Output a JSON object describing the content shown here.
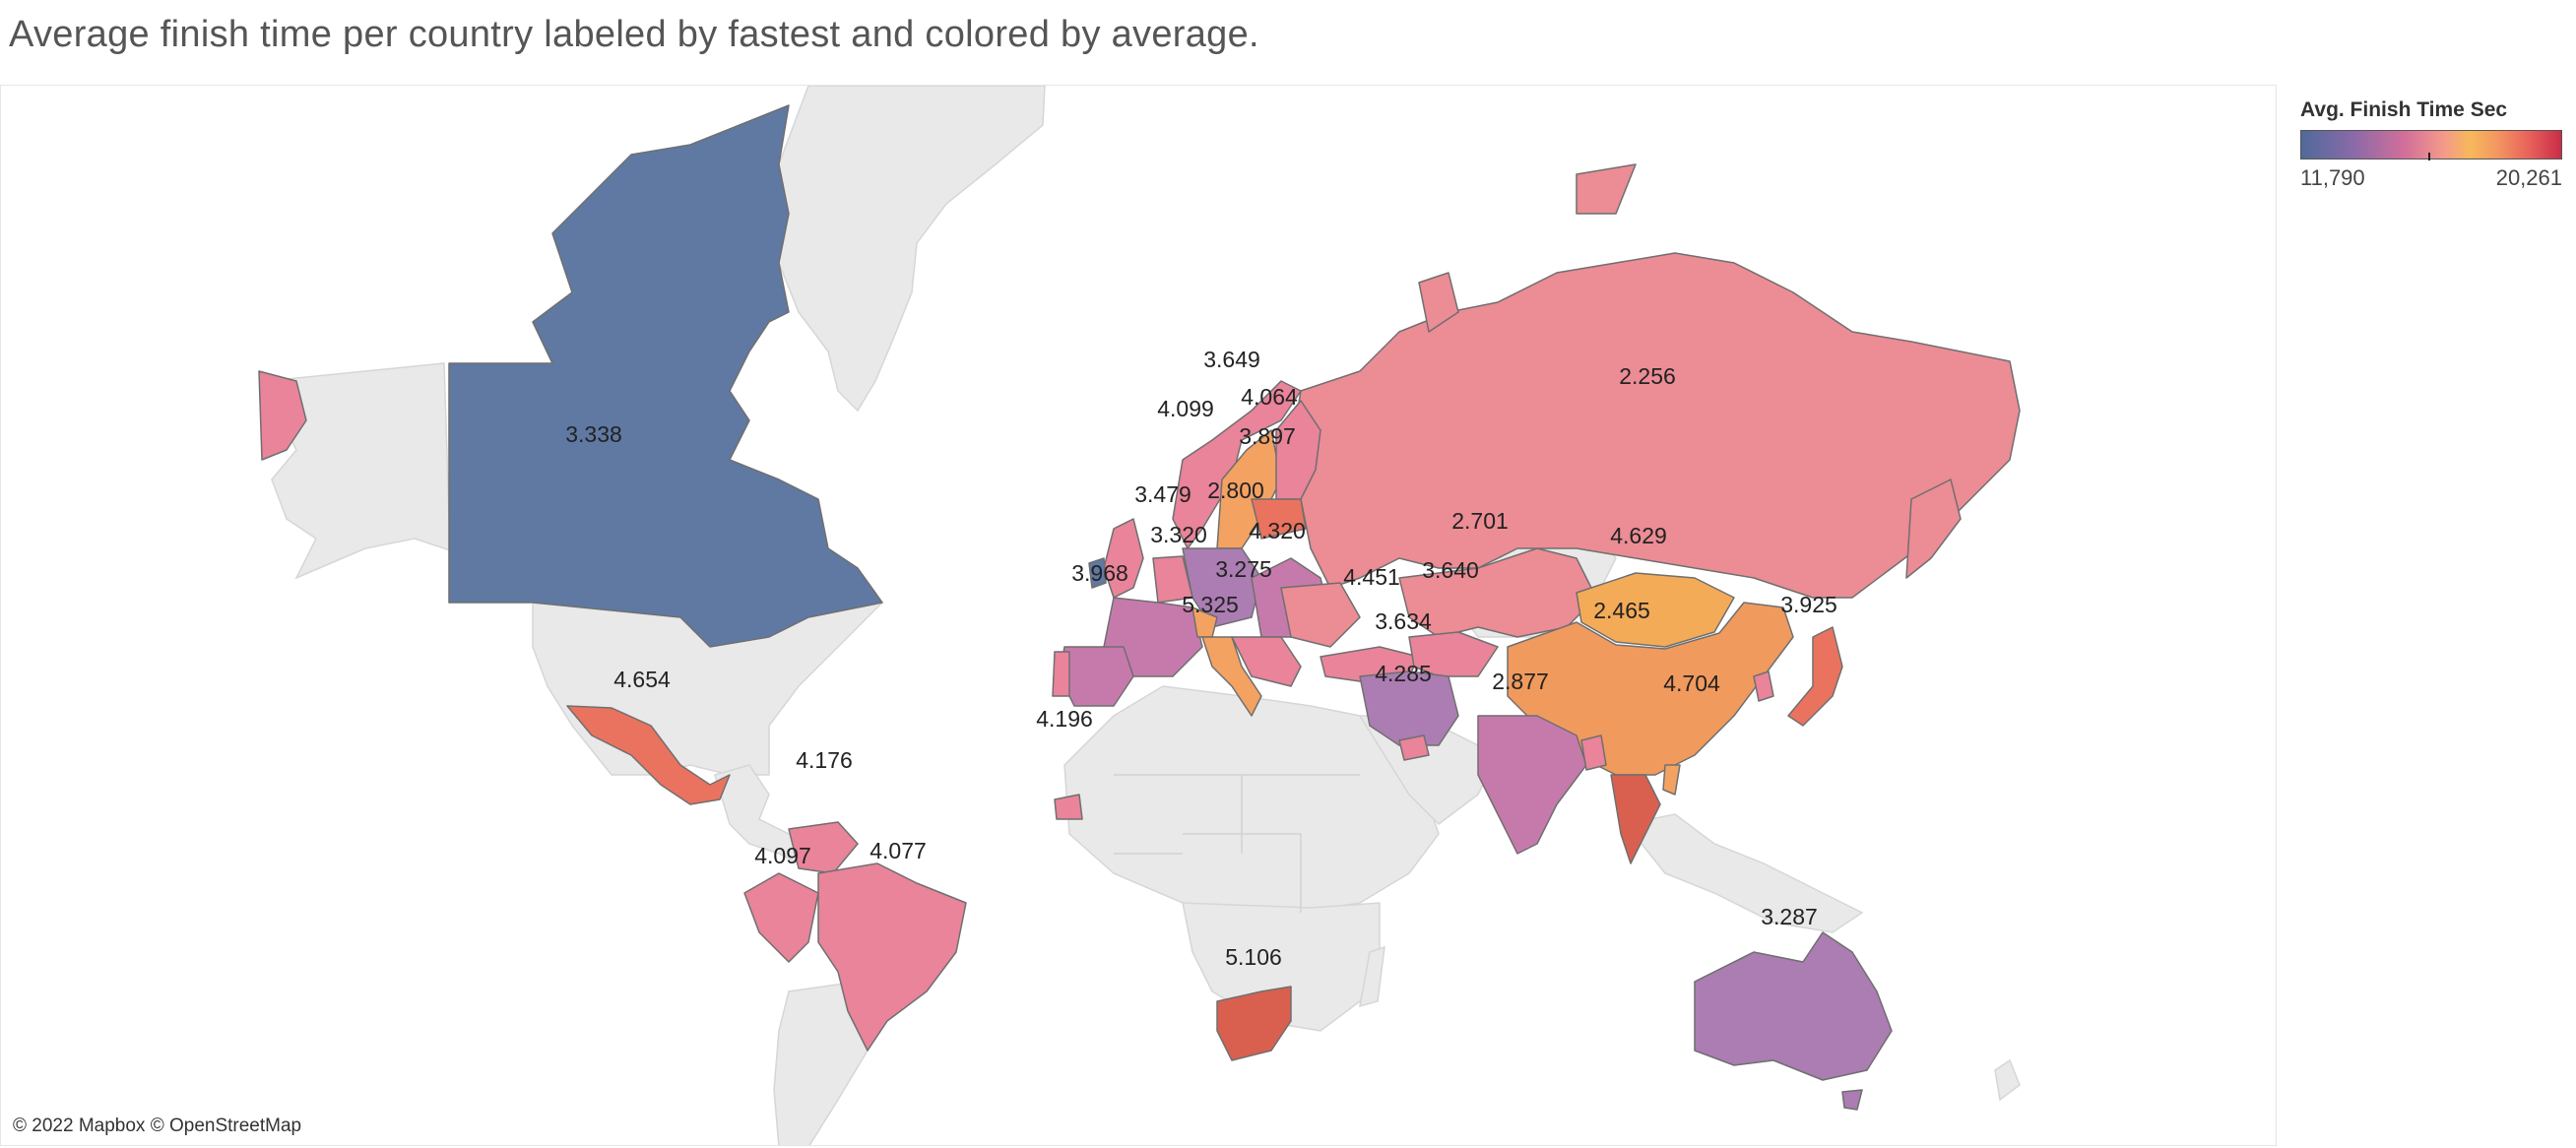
{
  "title": "Average finish time per country labeled by fastest and colored by average.",
  "legend": {
    "title": "Avg. Finish Time Sec",
    "min_label": "11,790",
    "max_label": "20,261",
    "min": 11790,
    "max": 20261
  },
  "attribution": "© 2022 Mapbox © OpenStreetMap",
  "colors": {
    "canada": "#5f79a3",
    "russia": "#ec8c95",
    "china": "#f19a5d",
    "mongolia": "#f4ab58",
    "purple": "#ab7db2",
    "mauve": "#c67aac",
    "pink": "#e9849a",
    "coral": "#ea735f",
    "orange": "#f3a262",
    "red": "#d9604f",
    "gray_land": "#e9e9e9"
  },
  "labels": [
    {
      "country": "Canada",
      "value": "3.338"
    },
    {
      "country": "Russia",
      "value": "2.256"
    },
    {
      "country": "Norway",
      "value": "4.099"
    },
    {
      "country": "Sweden",
      "value": "3.649"
    },
    {
      "country": "Finland",
      "value": "4.064"
    },
    {
      "country": "Baltics",
      "value": "3.897"
    },
    {
      "country": "United Kingdom",
      "value": "3.479"
    },
    {
      "country": "Germany",
      "value": "2.800"
    },
    {
      "country": "France",
      "value": "3.320"
    },
    {
      "country": "Eastern Europe",
      "value": "4.320"
    },
    {
      "country": "Kazakhstan",
      "value": "2.701"
    },
    {
      "country": "Mongolia",
      "value": "4.629"
    },
    {
      "country": "Spain",
      "value": "3.968"
    },
    {
      "country": "Italy",
      "value": "3.275"
    },
    {
      "country": "Malta",
      "value": "5.325"
    },
    {
      "country": "Turkey",
      "value": "4.451"
    },
    {
      "country": "Turkmenistan",
      "value": "3.640"
    },
    {
      "country": "Iran",
      "value": "3.634"
    },
    {
      "country": "China",
      "value": "2.465"
    },
    {
      "country": "Japan",
      "value": "3.925"
    },
    {
      "country": "Gulf",
      "value": "4.285"
    },
    {
      "country": "India",
      "value": "2.877"
    },
    {
      "country": "Thailand",
      "value": "4.704"
    },
    {
      "country": "Mexico",
      "value": "4.654"
    },
    {
      "country": "Senegal",
      "value": "4.196"
    },
    {
      "country": "Venezuela",
      "value": "4.176"
    },
    {
      "country": "Peru",
      "value": "4.097"
    },
    {
      "country": "Brazil",
      "value": "4.077"
    },
    {
      "country": "South Africa",
      "value": "5.106"
    },
    {
      "country": "Australia",
      "value": "3.287"
    }
  ]
}
